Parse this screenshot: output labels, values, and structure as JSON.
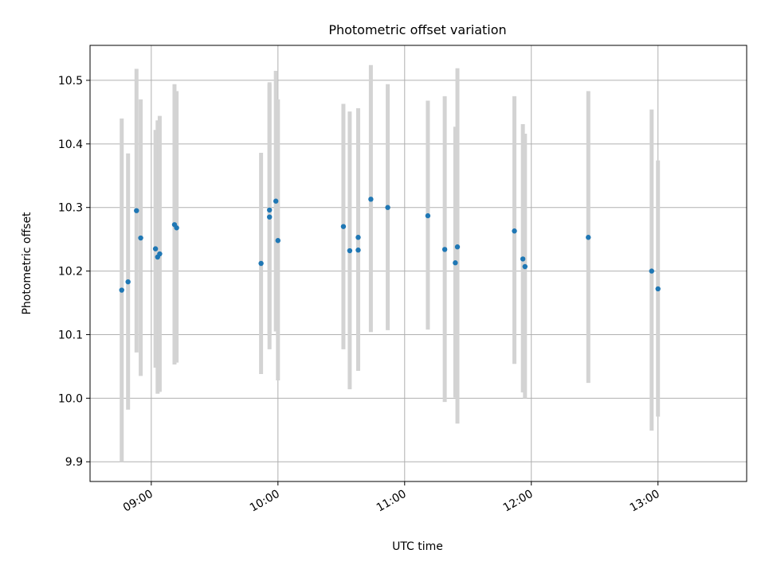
{
  "chart_data": {
    "type": "scatter",
    "title": "Photometric offset variation",
    "xlabel": "UTC time",
    "ylabel": "Photometric offset",
    "x_tick_labels": [
      "09:00",
      "10:00",
      "11:00",
      "12:00",
      "13:00"
    ],
    "x_tick_times": [
      "09:00",
      "10:00",
      "11:00",
      "12:00",
      "13:00"
    ],
    "y_ticks": [
      9.9,
      10.0,
      10.1,
      10.2,
      10.3,
      10.4,
      10.5
    ],
    "y_tick_labels": [
      "9.9",
      "10.0",
      "10.1",
      "10.2",
      "10.3",
      "10.4",
      "10.5"
    ],
    "xlim": [
      "08:31",
      "13:42"
    ],
    "ylim": [
      9.869,
      10.555
    ],
    "grid": true,
    "colors": {
      "point": "#1f77b4",
      "errorbar": "#d3d3d3",
      "grid": "#b0b0b0"
    },
    "series": [
      {
        "points": [
          {
            "time": "08:46",
            "y": 10.17,
            "ylow": 9.9,
            "yhigh": 10.44
          },
          {
            "time": "08:49",
            "y": 10.183,
            "ylow": 9.982,
            "yhigh": 10.385
          },
          {
            "time": "08:53",
            "y": 10.295,
            "ylow": 10.072,
            "yhigh": 10.518
          },
          {
            "time": "08:55",
            "y": 10.252,
            "ylow": 10.035,
            "yhigh": 10.47
          },
          {
            "time": "09:02",
            "y": 10.235,
            "ylow": 10.048,
            "yhigh": 10.422
          },
          {
            "time": "09:03",
            "y": 10.222,
            "ylow": 10.007,
            "yhigh": 10.437
          },
          {
            "time": "09:04",
            "y": 10.227,
            "ylow": 10.01,
            "yhigh": 10.444
          },
          {
            "time": "09:11",
            "y": 10.273,
            "ylow": 10.053,
            "yhigh": 10.494
          },
          {
            "time": "09:12",
            "y": 10.268,
            "ylow": 10.056,
            "yhigh": 10.483
          },
          {
            "time": "09:52",
            "y": 10.212,
            "ylow": 10.038,
            "yhigh": 10.386
          },
          {
            "time": "09:56",
            "y": 10.296,
            "ylow": 10.098,
            "yhigh": 10.497
          },
          {
            "time": "09:56",
            "y": 10.285,
            "ylow": 10.077,
            "yhigh": 10.494
          },
          {
            "time": "09:59",
            "y": 10.31,
            "ylow": 10.105,
            "yhigh": 10.515
          },
          {
            "time": "10:00",
            "y": 10.248,
            "ylow": 10.028,
            "yhigh": 10.47
          },
          {
            "time": "10:31",
            "y": 10.27,
            "ylow": 10.077,
            "yhigh": 10.463
          },
          {
            "time": "10:34",
            "y": 10.232,
            "ylow": 10.014,
            "yhigh": 10.451
          },
          {
            "time": "10:38",
            "y": 10.233,
            "ylow": 10.043,
            "yhigh": 10.456
          },
          {
            "time": "10:38",
            "y": 10.253,
            "ylow": 10.05,
            "yhigh": 10.456
          },
          {
            "time": "10:44",
            "y": 10.313,
            "ylow": 10.104,
            "yhigh": 10.524
          },
          {
            "time": "10:52",
            "y": 10.3,
            "ylow": 10.107,
            "yhigh": 10.494
          },
          {
            "time": "11:11",
            "y": 10.287,
            "ylow": 10.108,
            "yhigh": 10.468
          },
          {
            "time": "11:19",
            "y": 10.234,
            "ylow": 9.994,
            "yhigh": 10.475
          },
          {
            "time": "11:24",
            "y": 10.213,
            "ylow": 10.001,
            "yhigh": 10.427
          },
          {
            "time": "11:25",
            "y": 10.238,
            "ylow": 9.96,
            "yhigh": 10.519
          },
          {
            "time": "11:52",
            "y": 10.263,
            "ylow": 10.054,
            "yhigh": 10.475
          },
          {
            "time": "11:56",
            "y": 10.219,
            "ylow": 10.009,
            "yhigh": 10.431
          },
          {
            "time": "11:57",
            "y": 10.207,
            "ylow": 10.0,
            "yhigh": 10.416
          },
          {
            "time": "12:27",
            "y": 10.253,
            "ylow": 10.024,
            "yhigh": 10.483
          },
          {
            "time": "12:57",
            "y": 10.2,
            "ylow": 9.949,
            "yhigh": 10.454
          },
          {
            "time": "13:00",
            "y": 10.172,
            "ylow": 9.971,
            "yhigh": 10.374
          }
        ]
      }
    ]
  }
}
